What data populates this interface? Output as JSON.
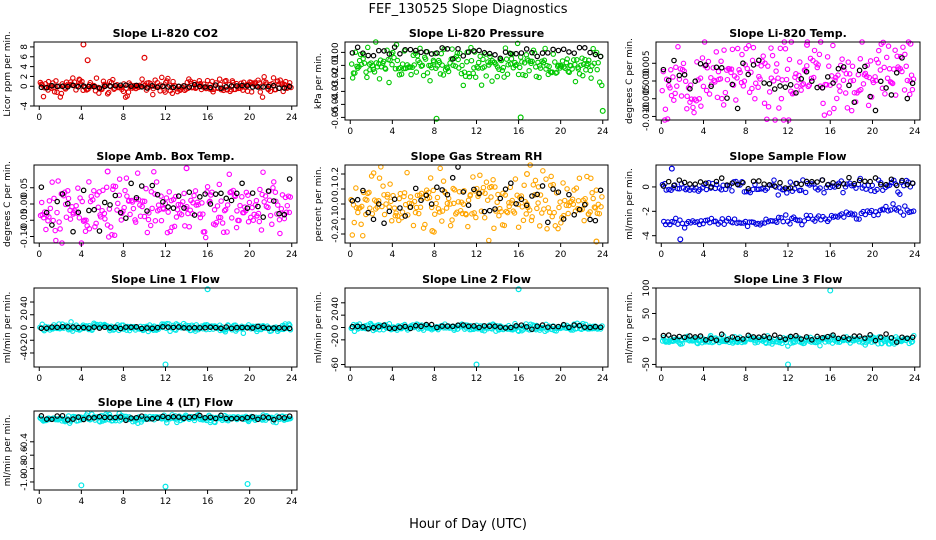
{
  "figure": {
    "title": "FEF_130525  Slope Diagnostics",
    "xlabel": "Hour of Day (UTC)"
  },
  "chart_data": [
    {
      "type": "scatter",
      "title": "Slope Li-820 CO2",
      "xlabel": "",
      "ylabel": "Licor ppm per min.",
      "xlim": [
        -0.5,
        24.5
      ],
      "xticks": [
        0,
        4,
        8,
        12,
        16,
        20,
        24
      ],
      "ylim": [
        -4,
        9
      ],
      "yticks": [
        -4,
        0,
        2,
        4,
        6,
        8
      ],
      "ytick_labels": [
        "-4",
        "0",
        "2",
        "4",
        "6",
        "8"
      ],
      "colors": {
        "primary": "#e00000",
        "secondary": "#000000"
      },
      "primary_center": 0,
      "primary_spread": 0.8,
      "secondary_center": 0,
      "secondary_spread": 0.2,
      "outliers": [
        [
          4.2,
          8.5
        ],
        [
          10.0,
          5.8
        ],
        [
          4.6,
          5.3
        ]
      ]
    },
    {
      "type": "scatter",
      "title": "Slope Li-820 Pressure",
      "xlabel": "",
      "ylabel": "kPa per min.",
      "xlim": [
        -0.5,
        24.5
      ],
      "xticks": [
        0,
        4,
        8,
        12,
        16,
        20,
        24
      ],
      "ylim": [
        -0.052,
        0.008
      ],
      "yticks": [
        -0.05,
        -0.04,
        -0.03,
        -0.02,
        -0.01,
        0.0
      ],
      "ytick_labels": [
        "-0.05",
        "-0.04",
        "-0.03",
        "-0.02",
        "-0.01",
        "0.00"
      ],
      "colors": {
        "primary": "#00c800",
        "secondary": "#000000"
      },
      "primary_center": -0.01,
      "primary_spread": 0.006,
      "secondary_center": 0.0,
      "secondary_spread": 0.002,
      "outliers": [
        [
          8.2,
          -0.051
        ],
        [
          16.2,
          -0.05
        ],
        [
          24.0,
          -0.045
        ]
      ]
    },
    {
      "type": "scatter",
      "title": "Slope Li-820 Temp.",
      "xlabel": "",
      "ylabel": "degrees C per min.",
      "xlim": [
        -0.5,
        24.5
      ],
      "xticks": [
        0,
        4,
        8,
        12,
        16,
        20,
        24
      ],
      "ylim": [
        -0.011,
        0.011
      ],
      "yticks": [
        -0.01,
        -0.005,
        0.0,
        0.005
      ],
      "ytick_labels": [
        "-0.010",
        "-0.005",
        "0.000",
        "0.005"
      ],
      "colors": {
        "primary": "#ff00ff",
        "secondary": "#000000"
      },
      "primary_center": 0.001,
      "primary_spread": 0.005,
      "secondary_center": 0.0,
      "secondary_spread": 0.003,
      "outliers": [
        [
          23.6,
          0.0105
        ],
        [
          13.8,
          0.0102
        ]
      ]
    },
    {
      "type": "scatter",
      "title": "Slope Amb. Box Temp.",
      "xlabel": "",
      "ylabel": "degrees C per min.",
      "xlim": [
        -0.5,
        24.5
      ],
      "xticks": [
        0,
        4,
        8,
        12,
        16,
        20,
        24
      ],
      "ylim": [
        -0.12,
        0.12
      ],
      "yticks": [
        -0.1,
        -0.05,
        0.0,
        0.05
      ],
      "ytick_labels": [
        "-0.10",
        "-0.05",
        "0.00",
        "0.05"
      ],
      "colors": {
        "primary": "#ff00ff",
        "secondary": "#000000"
      },
      "primary_center": -0.01,
      "primary_spread": 0.045,
      "secondary_center": 0.0,
      "secondary_spread": 0.045,
      "outliers": [
        [
          6.5,
          0.1
        ],
        [
          14.0,
          0.11
        ]
      ]
    },
    {
      "type": "scatter",
      "title": "Slope Gas Stream RH",
      "xlabel": "",
      "ylabel": "percent per min.",
      "xlim": [
        -0.5,
        24.5
      ],
      "xticks": [
        0,
        4,
        8,
        12,
        16,
        20,
        24
      ],
      "ylim": [
        -0.26,
        0.26
      ],
      "yticks": [
        -0.2,
        -0.1,
        0.0,
        0.1,
        0.2
      ],
      "ytick_labels": [
        "-0.2",
        "-0.1",
        "0.0",
        "0.1",
        "0.2"
      ],
      "colors": {
        "primary": "#ffa500",
        "secondary": "#000000"
      },
      "primary_center": 0.0,
      "primary_spread": 0.09,
      "secondary_center": 0.0,
      "secondary_spread": 0.08,
      "outliers": [
        [
          16.8,
          0.2
        ],
        [
          23.4,
          -0.25
        ],
        [
          7.8,
          -0.18
        ]
      ]
    },
    {
      "type": "scatter",
      "title": "Slope Sample Flow",
      "xlabel": "",
      "ylabel": "ml/min per min.",
      "xlim": [
        -0.5,
        24.5
      ],
      "xticks": [
        0,
        4,
        8,
        12,
        16,
        20,
        24
      ],
      "ylim": [
        -4.6,
        1.8
      ],
      "yticks": [
        -4,
        -2,
        0
      ],
      "ytick_labels": [
        "-4",
        "-2",
        "0"
      ],
      "colors": {
        "primary": "#0000e0",
        "secondary": "#000000"
      },
      "primary_center": 0.0,
      "primary_spread": 0.3,
      "secondary_center": 0.3,
      "secondary_spread": 0.2,
      "band2": {
        "start": -3.0,
        "mid": -2.8,
        "end": -1.8
      },
      "outliers": [
        [
          1.0,
          1.5
        ],
        [
          1.8,
          -4.3
        ]
      ]
    },
    {
      "type": "scatter",
      "title": "Slope Line 1 Flow",
      "xlabel": "",
      "ylabel": "ml/min per min.",
      "xlim": [
        -0.5,
        24.5
      ],
      "xticks": [
        0,
        4,
        8,
        12,
        16,
        20,
        24
      ],
      "ylim": [
        -62,
        62
      ],
      "yticks": [
        -40,
        -20,
        0,
        20,
        40
      ],
      "ytick_labels": [
        "-40",
        "-20",
        "0",
        "20",
        "40"
      ],
      "colors": {
        "primary": "#00e8e8",
        "secondary": "#000000"
      },
      "primary_center": 0,
      "primary_spread": 3,
      "secondary_center": 0,
      "secondary_spread": 1,
      "outliers": [
        [
          16.0,
          60
        ],
        [
          12.0,
          -58
        ]
      ]
    },
    {
      "type": "scatter",
      "title": "Slope Line 2 Flow",
      "xlabel": "",
      "ylabel": "ml/min per min.",
      "xlim": [
        -0.5,
        24.5
      ],
      "xticks": [
        0,
        4,
        8,
        12,
        16,
        20,
        24
      ],
      "ylim": [
        -64,
        64
      ],
      "yticks": [
        -60,
        -20,
        0,
        20,
        40
      ],
      "ytick_labels": [
        "-60",
        "-20",
        "0",
        "20",
        "40"
      ],
      "colors": {
        "primary": "#00e8e8",
        "secondary": "#000000"
      },
      "primary_center": 0,
      "primary_spread": 3,
      "secondary_center": 2,
      "secondary_spread": 2,
      "outliers": [
        [
          16.0,
          62
        ],
        [
          12.0,
          -60
        ]
      ]
    },
    {
      "type": "scatter",
      "title": "Slope Line 3 Flow",
      "xlabel": "",
      "ylabel": "ml/min per min.",
      "xlim": [
        -0.5,
        24.5
      ],
      "xticks": [
        0,
        4,
        8,
        12,
        16,
        20,
        24
      ],
      "ylim": [
        -55,
        100
      ],
      "yticks": [
        -50,
        0,
        50,
        100
      ],
      "ytick_labels": [
        "-50",
        "0",
        "50",
        "100"
      ],
      "colors": {
        "primary": "#00e8e8",
        "secondary": "#000000"
      },
      "primary_center": -3,
      "primary_spread": 4,
      "secondary_center": 3,
      "secondary_spread": 3,
      "outliers": [
        [
          16.0,
          95
        ],
        [
          12.0,
          -50
        ]
      ]
    },
    {
      "type": "scatter",
      "title": "Slope Line 4 (LT) Flow",
      "xlabel": "",
      "ylabel": "ml/min per min.",
      "xlim": [
        -0.5,
        24.5
      ],
      "xticks": [
        0,
        4,
        8,
        12,
        16,
        20,
        24
      ],
      "ylim": [
        -1.12,
        0.06
      ],
      "yticks": [
        -1.0,
        -0.8,
        -0.6,
        -0.4
      ],
      "ytick_labels": [
        "-1.0",
        "-0.8",
        "-0.6",
        "-0.4"
      ],
      "colors": {
        "primary": "#00e8e8",
        "secondary": "#000000"
      },
      "primary_center": -0.05,
      "primary_spread": 0.03,
      "secondary_center": -0.04,
      "secondary_spread": 0.02,
      "outliers": [
        [
          4.0,
          -1.05
        ],
        [
          12.0,
          -1.07
        ],
        [
          19.8,
          -1.03
        ]
      ]
    }
  ]
}
